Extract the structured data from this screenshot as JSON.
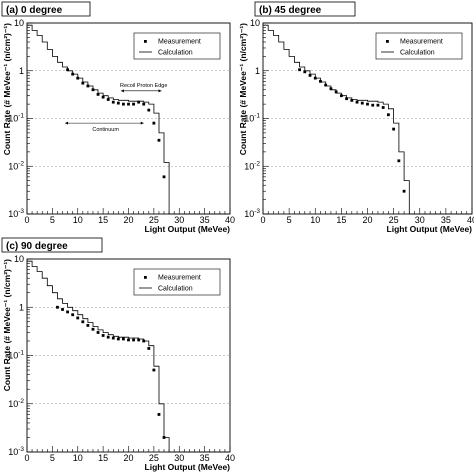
{
  "chart_data": [
    {
      "type": "line",
      "title": "(a) 0 degree",
      "xlabel": "Light Output (MeVee)",
      "ylabel": "Count Rate (# MeVee⁻¹ (n/cm²)⁻¹)",
      "xlim": [
        0,
        40
      ],
      "ylim": [
        0.001,
        10
      ],
      "yscale": "log",
      "grid": "horizontal dashed at decades",
      "legend_position": "top-right",
      "x_ticks": [
        "0",
        "5",
        "10",
        "15",
        "20",
        "25",
        "30",
        "35",
        "40"
      ],
      "y_ticks": [
        {
          "base": "10",
          "exp": "-3"
        },
        {
          "base": "10",
          "exp": "-2"
        },
        {
          "base": "10",
          "exp": "-1"
        },
        {
          "base": "1",
          "exp": ""
        },
        {
          "base": "10",
          "exp": ""
        }
      ],
      "series": [
        {
          "name": "Measurement",
          "style": "points",
          "x": [
            8,
            9,
            10,
            11,
            12,
            13,
            14,
            15,
            16,
            17,
            18,
            19,
            20,
            21,
            22,
            23,
            24,
            25,
            26,
            27
          ],
          "y": [
            1.05,
            0.85,
            0.7,
            0.55,
            0.48,
            0.4,
            0.32,
            0.28,
            0.25,
            0.22,
            0.21,
            0.2,
            0.2,
            0.2,
            0.22,
            0.2,
            0.15,
            0.08,
            0.035,
            0.006
          ]
        },
        {
          "name": "Calculation",
          "style": "step",
          "x": [
            0,
            1,
            2,
            3,
            4,
            5,
            6,
            7,
            8,
            9,
            10,
            11,
            12,
            13,
            14,
            15,
            16,
            17,
            18,
            19,
            20,
            21,
            22,
            23,
            24,
            25,
            26,
            27,
            28,
            40
          ],
          "y": [
            9,
            7,
            5.5,
            4,
            2.8,
            2.0,
            1.5,
            1.2,
            1.0,
            0.85,
            0.7,
            0.58,
            0.48,
            0.4,
            0.34,
            0.3,
            0.27,
            0.25,
            0.24,
            0.24,
            0.23,
            0.23,
            0.23,
            0.22,
            0.2,
            0.13,
            0.05,
            0.012,
            0.001,
            0.001
          ]
        }
      ],
      "annotations": [
        {
          "text": "Recoil Proton Edge",
          "x": 23,
          "y": 0.38
        },
        {
          "text": "Continuum",
          "x": 18,
          "y": 0.065
        }
      ]
    },
    {
      "type": "line",
      "title": "(b) 45 degree",
      "xlabel": "Light Output (MeVee)",
      "ylabel": "Count Rate (# MeVee⁻¹ (n/cm²)⁻¹)",
      "xlim": [
        0,
        40
      ],
      "ylim": [
        0.001,
        10
      ],
      "yscale": "log",
      "grid": "horizontal dashed at decades",
      "legend_position": "top-right",
      "x_ticks": [
        "0",
        "5",
        "10",
        "15",
        "20",
        "25",
        "30",
        "35",
        "40"
      ],
      "y_ticks": [
        {
          "base": "10",
          "exp": "-3"
        },
        {
          "base": "10",
          "exp": "-2"
        },
        {
          "base": "10",
          "exp": "-1"
        },
        {
          "base": "1",
          "exp": ""
        },
        {
          "base": "10",
          "exp": ""
        }
      ],
      "series": [
        {
          "name": "Measurement",
          "style": "points",
          "x": [
            7,
            8,
            9,
            10,
            11,
            12,
            13,
            14,
            15,
            16,
            17,
            18,
            19,
            20,
            21,
            22,
            23,
            24,
            25,
            26,
            27
          ],
          "y": [
            1.05,
            0.95,
            0.8,
            0.7,
            0.6,
            0.5,
            0.42,
            0.36,
            0.3,
            0.26,
            0.24,
            0.22,
            0.21,
            0.2,
            0.19,
            0.19,
            0.17,
            0.12,
            0.06,
            0.013,
            0.003
          ]
        },
        {
          "name": "Calculation",
          "style": "step",
          "x": [
            0,
            1,
            2,
            3,
            4,
            5,
            6,
            7,
            8,
            9,
            10,
            11,
            12,
            13,
            14,
            15,
            16,
            17,
            18,
            19,
            20,
            21,
            22,
            23,
            24,
            25,
            26,
            27,
            28,
            40
          ],
          "y": [
            9,
            7,
            5.5,
            4,
            2.8,
            2.0,
            1.5,
            1.2,
            1.0,
            0.85,
            0.7,
            0.58,
            0.48,
            0.4,
            0.34,
            0.3,
            0.27,
            0.25,
            0.24,
            0.24,
            0.23,
            0.23,
            0.22,
            0.2,
            0.16,
            0.08,
            0.02,
            0.005,
            0.001,
            0.001
          ]
        }
      ]
    },
    {
      "type": "line",
      "title": "(c) 90 degree",
      "xlabel": "Light Output (MeVee)",
      "ylabel": "Count Rate (# MeVee⁻¹ (n/cm²)⁻¹)",
      "xlim": [
        0,
        40
      ],
      "ylim": [
        0.001,
        10
      ],
      "yscale": "log",
      "grid": "horizontal dashed at decades",
      "legend_position": "top-right",
      "x_ticks": [
        "0",
        "5",
        "10",
        "15",
        "20",
        "25",
        "30",
        "35",
        "40"
      ],
      "y_ticks": [
        {
          "base": "10",
          "exp": "-3"
        },
        {
          "base": "10",
          "exp": "-2"
        },
        {
          "base": "10",
          "exp": "-1"
        },
        {
          "base": "1",
          "exp": ""
        },
        {
          "base": "10",
          "exp": ""
        }
      ],
      "series": [
        {
          "name": "Measurement",
          "style": "points",
          "x": [
            6,
            7,
            8,
            9,
            10,
            11,
            12,
            13,
            14,
            15,
            16,
            17,
            18,
            19,
            20,
            21,
            22,
            23,
            24,
            25,
            26,
            27
          ],
          "y": [
            1.0,
            0.9,
            0.8,
            0.7,
            0.6,
            0.5,
            0.42,
            0.35,
            0.3,
            0.26,
            0.24,
            0.23,
            0.22,
            0.22,
            0.21,
            0.21,
            0.21,
            0.2,
            0.14,
            0.05,
            0.006,
            0.002
          ]
        },
        {
          "name": "Calculation",
          "style": "step",
          "x": [
            0,
            1,
            2,
            3,
            4,
            5,
            6,
            7,
            8,
            9,
            10,
            11,
            12,
            13,
            14,
            15,
            16,
            17,
            18,
            19,
            20,
            21,
            22,
            23,
            24,
            25,
            26,
            27,
            28,
            40
          ],
          "y": [
            9,
            7,
            5.5,
            4,
            2.8,
            2.0,
            1.5,
            1.2,
            1.0,
            0.85,
            0.7,
            0.58,
            0.48,
            0.4,
            0.34,
            0.3,
            0.27,
            0.25,
            0.24,
            0.24,
            0.23,
            0.23,
            0.22,
            0.2,
            0.16,
            0.06,
            0.01,
            0.002,
            0.001,
            0.001
          ]
        }
      ]
    }
  ]
}
